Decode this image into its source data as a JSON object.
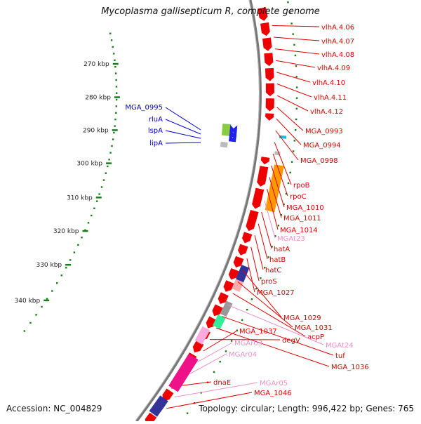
{
  "title": "Mycoplasma gallisepticum R, complete genome",
  "footer": {
    "accession": "Accession: NC_004829",
    "summary": "Topology: circular; Length: 996,422 bp; Genes: 765"
  },
  "colors": {
    "backbone": "#777777",
    "tick": "#1a7a1a",
    "forward_label": "#0000cc",
    "reverse_label": "#dd0000",
    "rna_label": "#e890c8"
  },
  "ruler": [
    "270 kbp",
    "280 kbp",
    "290 kbp",
    "300 kbp",
    "310 kbp",
    "320 kbp",
    "330 kbp",
    "340 kbp"
  ],
  "left_labels": [
    "MGA_0995",
    "rluA",
    "lspA",
    "lipA"
  ],
  "right_labels": [
    {
      "text": "vlhA.4.06",
      "kind": "reverse"
    },
    {
      "text": "vlhA.4.07",
      "kind": "reverse"
    },
    {
      "text": "vlhA.4.08",
      "kind": "reverse"
    },
    {
      "text": "vlhA.4.09",
      "kind": "reverse"
    },
    {
      "text": "vlhA.4.10",
      "kind": "reverse"
    },
    {
      "text": "vlhA.4.11",
      "kind": "reverse"
    },
    {
      "text": "vlhA.4.12",
      "kind": "reverse"
    },
    {
      "text": "MGA_0993",
      "kind": "reverse"
    },
    {
      "text": "MGA_0994",
      "kind": "reverse"
    },
    {
      "text": "MGA_0998",
      "kind": "reverse"
    },
    {
      "text": "rpoB",
      "kind": "reverse"
    },
    {
      "text": "rpoC",
      "kind": "reverse"
    },
    {
      "text": "MGA_1010",
      "kind": "reverse"
    },
    {
      "text": "MGA_1011",
      "kind": "reverse"
    },
    {
      "text": "MGA_1014",
      "kind": "reverse"
    },
    {
      "text": "MGAt23",
      "kind": "rna"
    },
    {
      "text": "hatA",
      "kind": "reverse"
    },
    {
      "text": "hatB",
      "kind": "reverse"
    },
    {
      "text": "hatC",
      "kind": "reverse"
    },
    {
      "text": "proS",
      "kind": "reverse"
    },
    {
      "text": "MGA_1027",
      "kind": "reverse"
    },
    {
      "text": "MGA_1029",
      "kind": "reverse"
    },
    {
      "text": "MGA_1031",
      "kind": "reverse"
    },
    {
      "text": "acpP",
      "kind": "reverse"
    },
    {
      "text": "MGAt24",
      "kind": "rna"
    },
    {
      "text": "tuf",
      "kind": "reverse"
    },
    {
      "text": "MGA_1036",
      "kind": "reverse"
    },
    {
      "text": "degV",
      "kind": "reverse"
    },
    {
      "text": "MGA_1037",
      "kind": "reverse"
    },
    {
      "text": "MGAr03",
      "kind": "rna"
    },
    {
      "text": "MGAr04",
      "kind": "rna"
    },
    {
      "text": "dnaE",
      "kind": "reverse"
    },
    {
      "text": "MGAr05",
      "kind": "rna"
    },
    {
      "text": "MGA_1046",
      "kind": "reverse"
    }
  ]
}
